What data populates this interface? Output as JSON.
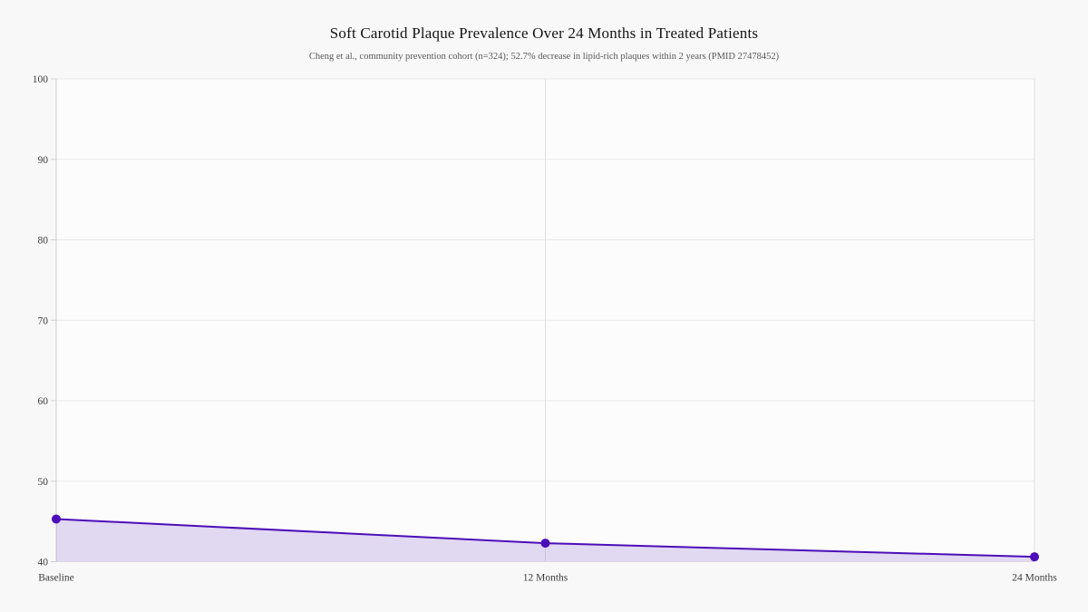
{
  "chart_data": {
    "type": "area",
    "title": "Soft Carotid Plaque Prevalence Over 24 Months in Treated Patients",
    "subtitle": "Cheng et al., community prevention cohort (n=324); 52.7% decrease in lipid-rich plaques within 2 years (PMID 27478452)",
    "categories": [
      "Baseline",
      "12 Months",
      "24 Months"
    ],
    "values": [
      45.3,
      42.3,
      40.6
    ],
    "xlabel": "",
    "ylabel": "",
    "ylim": [
      40,
      100
    ],
    "yticks": [
      40,
      50,
      60,
      70,
      80,
      90,
      100
    ],
    "grid": true,
    "legend": false,
    "colors": {
      "line": "#4b0eb8",
      "marker": "#4b0eb8",
      "fill": "rgba(75, 14, 184, 0.15)",
      "gridline": "#e9e9e9",
      "vertical_gridline": "#e2e2e2",
      "axis_line": "#d0d0d0",
      "plot_background": "#fcfcfc",
      "page_background": "#f8f8f8",
      "tick_text": "#3c3c3c"
    }
  }
}
